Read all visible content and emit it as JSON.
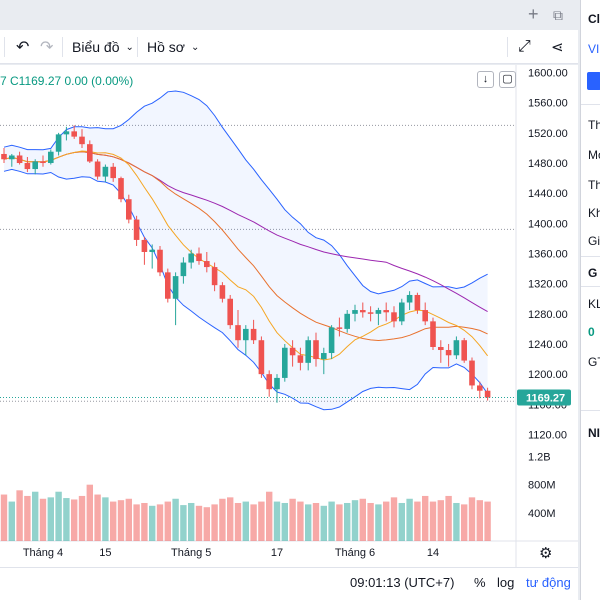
{
  "toolbar": {
    "chart_label": "Biểu đồ",
    "template_label": "Hồ sơ",
    "plus_glyph": "+"
  },
  "legend": {
    "text": "7  C1169.27  0.00 (0.00%)"
  },
  "statusbar": {
    "time": "09:01:13 (UTC+7)",
    "percent": "%",
    "log": "log",
    "auto": "tư động"
  },
  "right_panel": {
    "items": [
      "Cl",
      "VI",
      "Th",
      "Mó",
      "Th",
      "Kh",
      "Gia",
      "G",
      "KL",
      "0",
      "GT",
      "NI"
    ]
  },
  "colors": {
    "up": "#26a69a",
    "down": "#ef5350",
    "bb": "#2962ff",
    "ma_fast": "#f5a623",
    "ma_mid": "#e8722f",
    "ma_slow": "#9c27b0"
  },
  "chart_data": {
    "type": "candlestick",
    "last_price_label": "1169.27",
    "y_ticks": [
      "1600.00",
      "1560.00",
      "1520.00",
      "1480.00",
      "1440.00",
      "1400.00",
      "1360.00",
      "1320.00",
      "1280.00",
      "1240.00",
      "1200.00",
      "1160.00",
      "1120.00"
    ],
    "y_tick_values": [
      1600,
      1560,
      1520,
      1480,
      1440,
      1400,
      1360,
      1320,
      1280,
      1240,
      1200,
      1160,
      1120
    ],
    "ylim": [
      1110,
      1610
    ],
    "volume_ticks": [
      "1.2B",
      "800M",
      "400M"
    ],
    "volume_tick_values": [
      1200,
      800,
      400
    ],
    "x_labels": [
      {
        "label": "Tháng 4",
        "index": 5
      },
      {
        "label": "15",
        "index": 13
      },
      {
        "label": "Tháng 5",
        "index": 24
      },
      {
        "label": "17",
        "index": 35
      },
      {
        "label": "Tháng 6",
        "index": 45
      },
      {
        "label": "14",
        "index": 55
      }
    ],
    "ohlc": [
      [
        1492,
        1500,
        1480,
        1485
      ],
      [
        1485,
        1492,
        1475,
        1490
      ],
      [
        1490,
        1495,
        1478,
        1480
      ],
      [
        1480,
        1488,
        1468,
        1472
      ],
      [
        1472,
        1485,
        1465,
        1482
      ],
      [
        1482,
        1490,
        1475,
        1480
      ],
      [
        1480,
        1498,
        1478,
        1495
      ],
      [
        1495,
        1520,
        1490,
        1518
      ],
      [
        1518,
        1528,
        1510,
        1522
      ],
      [
        1522,
        1530,
        1512,
        1515
      ],
      [
        1515,
        1525,
        1500,
        1505
      ],
      [
        1505,
        1510,
        1480,
        1482
      ],
      [
        1482,
        1485,
        1458,
        1462
      ],
      [
        1462,
        1478,
        1455,
        1475
      ],
      [
        1475,
        1480,
        1455,
        1460
      ],
      [
        1460,
        1462,
        1428,
        1432
      ],
      [
        1432,
        1438,
        1400,
        1405
      ],
      [
        1405,
        1410,
        1370,
        1378
      ],
      [
        1378,
        1382,
        1345,
        1362
      ],
      [
        1362,
        1372,
        1340,
        1365
      ],
      [
        1365,
        1370,
        1330,
        1335
      ],
      [
        1335,
        1340,
        1295,
        1300
      ],
      [
        1300,
        1335,
        1265,
        1330
      ],
      [
        1330,
        1355,
        1320,
        1348
      ],
      [
        1348,
        1365,
        1340,
        1360
      ],
      [
        1360,
        1368,
        1345,
        1350
      ],
      [
        1350,
        1362,
        1335,
        1342
      ],
      [
        1342,
        1348,
        1310,
        1318
      ],
      [
        1318,
        1322,
        1295,
        1300
      ],
      [
        1300,
        1305,
        1260,
        1265
      ],
      [
        1265,
        1285,
        1235,
        1245
      ],
      [
        1245,
        1265,
        1225,
        1260
      ],
      [
        1260,
        1272,
        1240,
        1245
      ],
      [
        1245,
        1250,
        1195,
        1200
      ],
      [
        1200,
        1205,
        1170,
        1180
      ],
      [
        1180,
        1200,
        1162,
        1195
      ],
      [
        1195,
        1240,
        1190,
        1235
      ],
      [
        1235,
        1245,
        1210,
        1225
      ],
      [
        1225,
        1235,
        1205,
        1215
      ],
      [
        1215,
        1250,
        1205,
        1245
      ],
      [
        1245,
        1255,
        1210,
        1220
      ],
      [
        1220,
        1235,
        1200,
        1228
      ],
      [
        1228,
        1265,
        1220,
        1262
      ],
      [
        1262,
        1275,
        1250,
        1260
      ],
      [
        1260,
        1285,
        1255,
        1280
      ],
      [
        1280,
        1292,
        1270,
        1285
      ],
      [
        1285,
        1295,
        1275,
        1282
      ],
      [
        1282,
        1290,
        1270,
        1280
      ],
      [
        1280,
        1288,
        1265,
        1285
      ],
      [
        1285,
        1295,
        1270,
        1282
      ],
      [
        1282,
        1290,
        1262,
        1270
      ],
      [
        1270,
        1300,
        1265,
        1295
      ],
      [
        1295,
        1310,
        1285,
        1305
      ],
      [
        1305,
        1308,
        1280,
        1285
      ],
      [
        1285,
        1295,
        1265,
        1270
      ],
      [
        1270,
        1275,
        1232,
        1236
      ],
      [
        1236,
        1245,
        1215,
        1232
      ],
      [
        1232,
        1240,
        1210,
        1225
      ],
      [
        1225,
        1250,
        1220,
        1245
      ],
      [
        1245,
        1248,
        1215,
        1218
      ],
      [
        1218,
        1222,
        1180,
        1185
      ],
      [
        1185,
        1190,
        1168,
        1178
      ],
      [
        1178,
        1182,
        1165,
        1169
      ]
    ],
    "volume": [
      660,
      560,
      720,
      640,
      700,
      600,
      620,
      700,
      610,
      590,
      640,
      800,
      660,
      620,
      560,
      580,
      600,
      520,
      540,
      500,
      520,
      560,
      600,
      510,
      540,
      500,
      480,
      520,
      600,
      620,
      540,
      560,
      520,
      560,
      700,
      560,
      540,
      600,
      560,
      520,
      540,
      500,
      560,
      520,
      540,
      580,
      600,
      540,
      520,
      560,
      620,
      540,
      600,
      560,
      640,
      560,
      580,
      640,
      540,
      520,
      620,
      580,
      560
    ]
  }
}
